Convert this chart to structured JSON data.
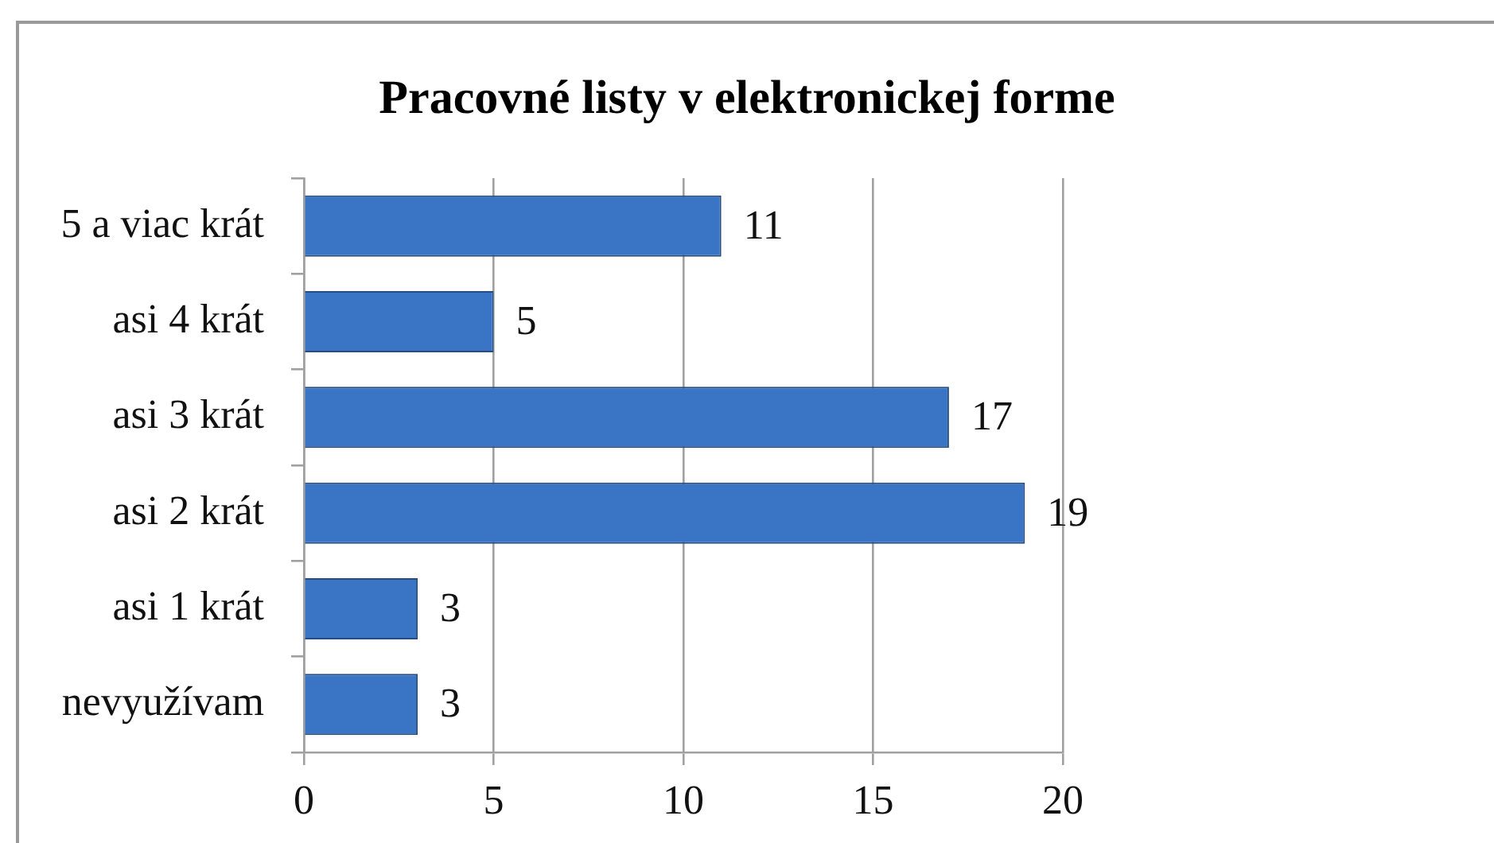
{
  "chart_data": {
    "type": "bar",
    "title": "Pracovné listy v elektronickej forme",
    "orientation": "horizontal",
    "categories": [
      "5 a viac krát",
      "asi 4 krát",
      "asi 3 krát",
      "asi 2 krát",
      "asi 1 krát",
      "nevyužívam"
    ],
    "values": [
      11,
      5,
      17,
      19,
      3,
      3
    ],
    "color": "#3a75c5",
    "xlim": [
      0,
      20
    ],
    "xticks": [
      0,
      5,
      10,
      15,
      20
    ],
    "grid": "x",
    "data_labels": true
  }
}
